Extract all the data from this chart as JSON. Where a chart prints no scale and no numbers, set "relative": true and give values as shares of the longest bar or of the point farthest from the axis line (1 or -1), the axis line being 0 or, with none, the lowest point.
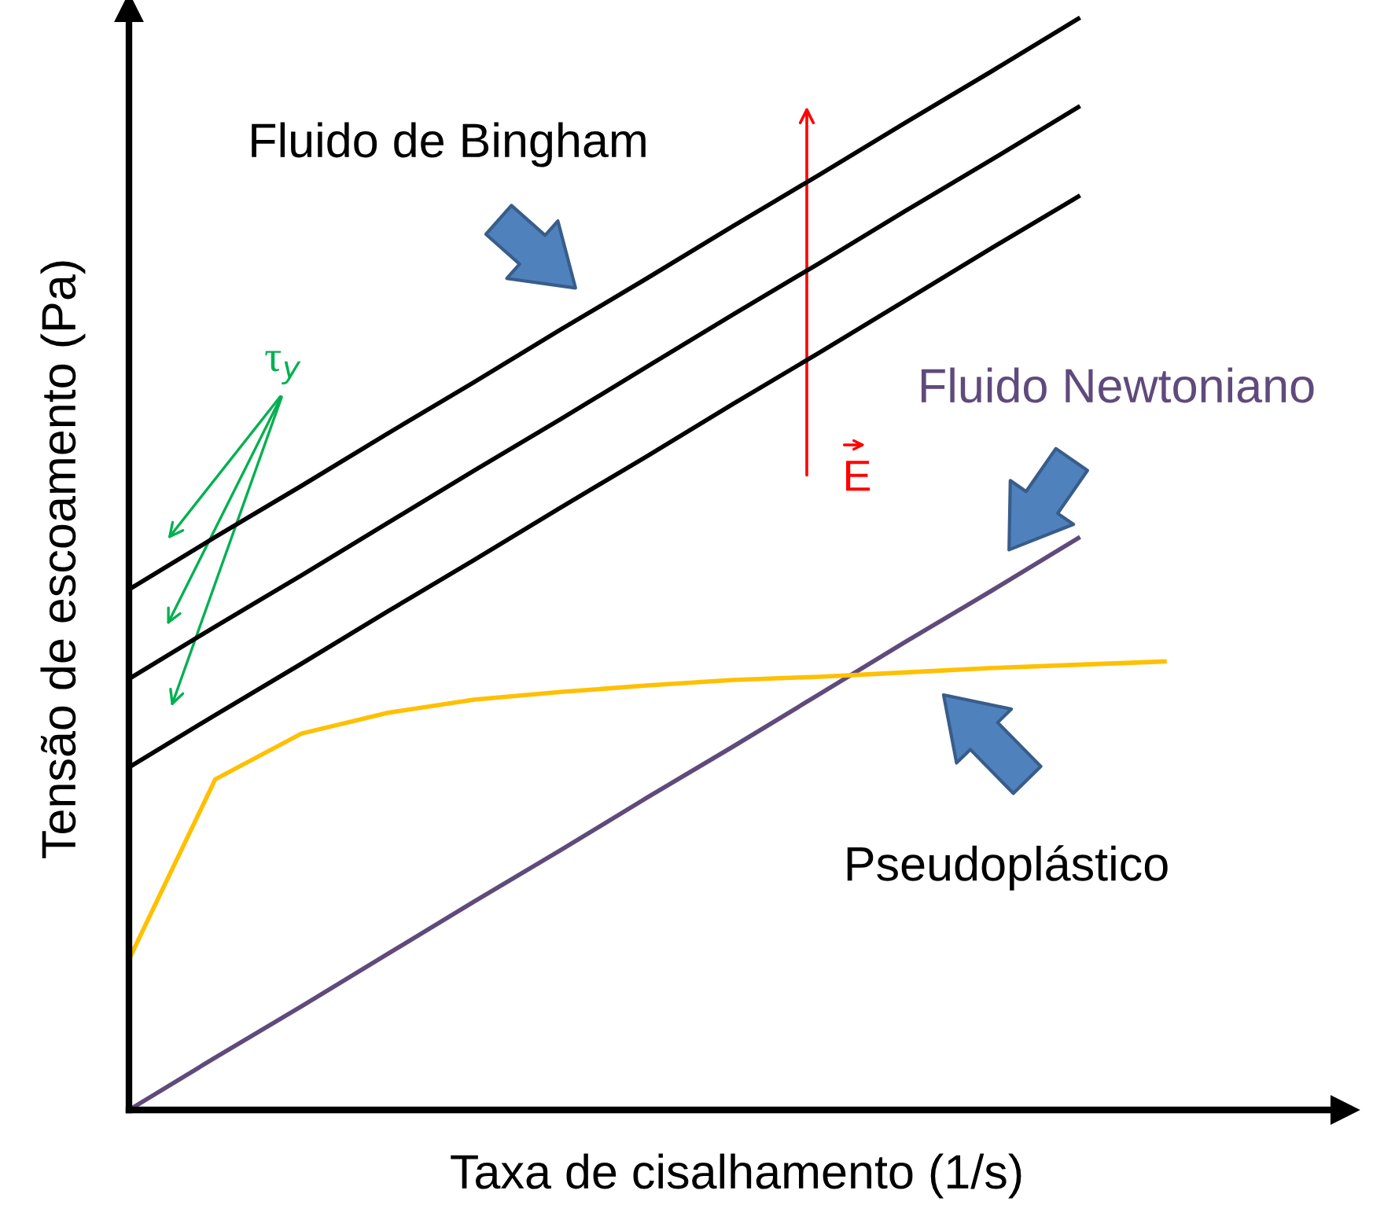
{
  "chart_data": {
    "type": "line",
    "relative": true,
    "xlabel": "Taxa de cisalhamento (1/s)",
    "ylabel": "Tensão de escoamento (Pa)",
    "categories": [
      null,
      null,
      null,
      null,
      null,
      null,
      null,
      null,
      null,
      null,
      null,
      null,
      null
    ],
    "series": [
      {
        "color": "#000000",
        "values": [
          0.477,
          0.525,
          0.572,
          0.62,
          0.667,
          0.715,
          0.762,
          0.81,
          0.857,
          0.905,
          0.952,
          1.0,
          null
        ]
      },
      {
        "color": "#000000",
        "values": [
          0.395,
          0.443,
          0.49,
          0.538,
          0.586,
          0.633,
          0.681,
          0.729,
          0.776,
          0.824,
          0.871,
          0.919,
          null
        ]
      },
      {
        "color": "#000000",
        "values": [
          0.314,
          0.362,
          0.409,
          0.457,
          0.504,
          0.552,
          0.599,
          0.647,
          0.694,
          0.742,
          0.79,
          0.837,
          null
        ]
      },
      {
        "color": "#604a7b",
        "values": [
          0,
          0.048,
          0.095,
          0.143,
          0.191,
          0.238,
          0.286,
          0.333,
          0.381,
          0.429,
          0.476,
          0.524,
          null
        ]
      },
      {
        "color": "#ffc000",
        "values": [
          0.138,
          0.303,
          0.345,
          0.364,
          0.376,
          0.383,
          0.389,
          0.394,
          0.397,
          0.401,
          0.405,
          0.408,
          0.411
        ]
      }
    ],
    "annotations": [
      "Fluido de Bingham",
      "Fluido Newtoniano",
      "Pseudoplástico",
      "τ$_{y}$",
      "E"
    ]
  }
}
